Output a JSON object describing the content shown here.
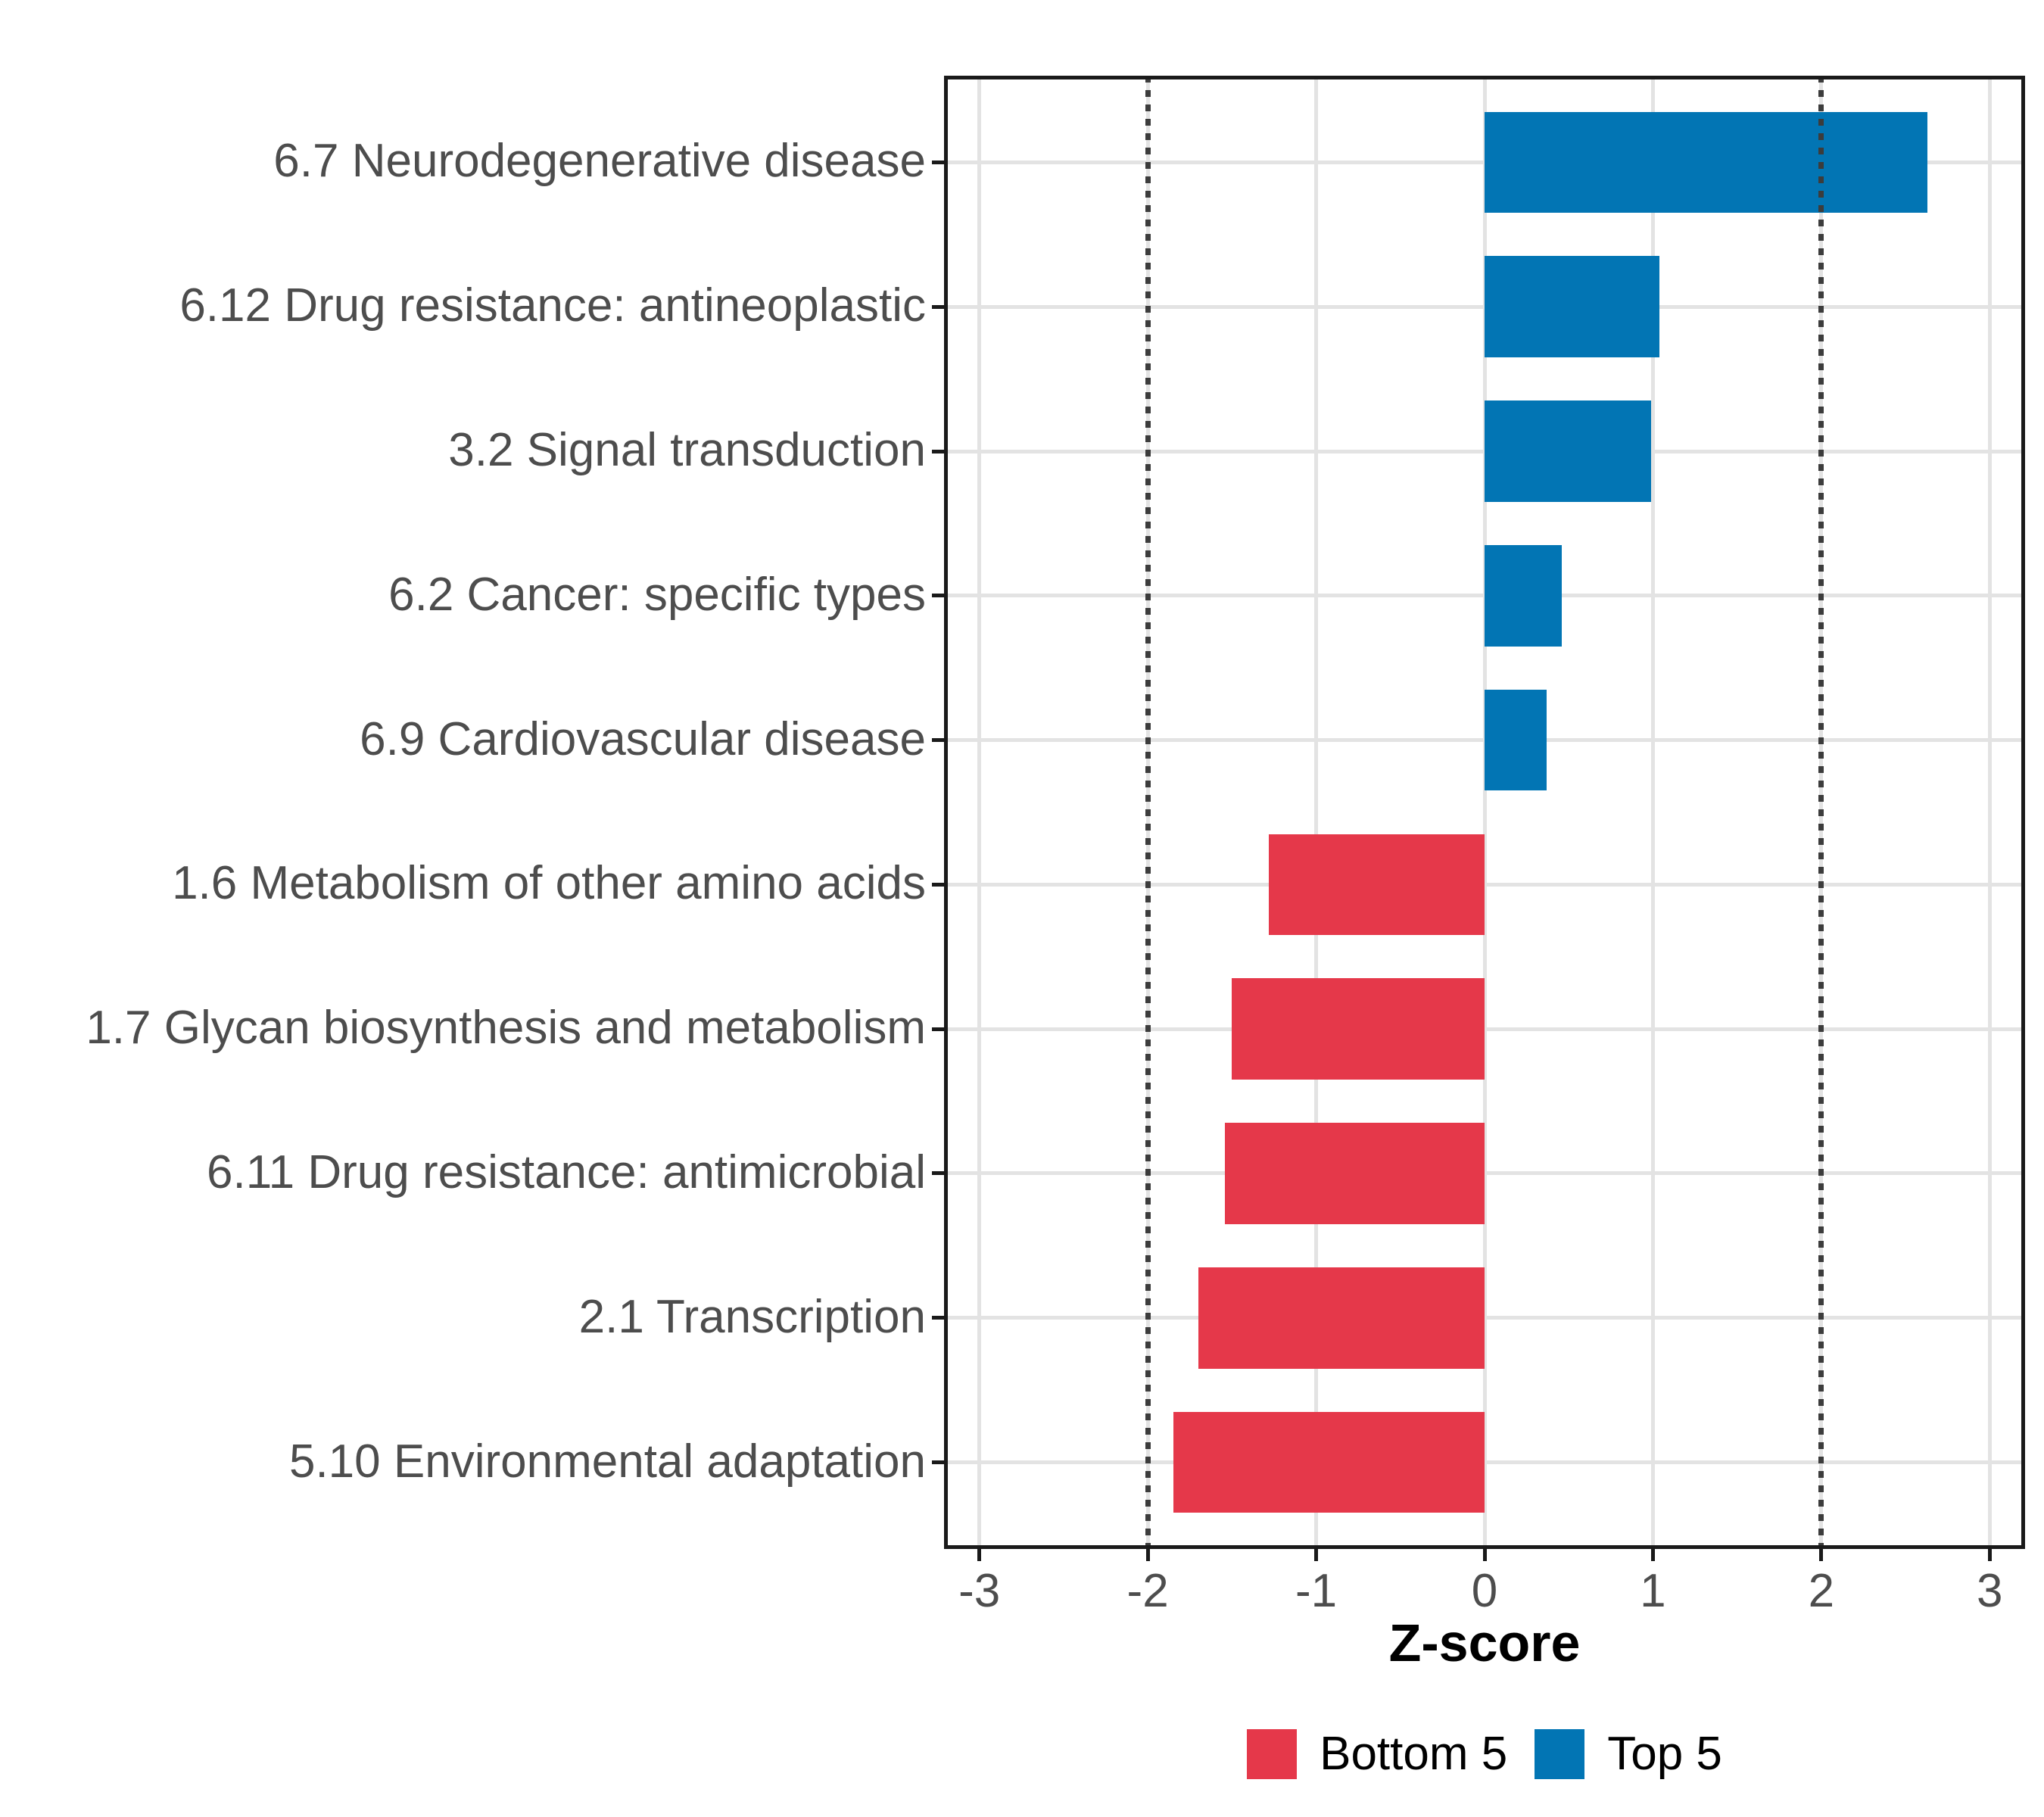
{
  "chart_data": {
    "type": "bar",
    "orientation": "horizontal",
    "title": "",
    "xlabel": "Z-score",
    "ylabel": "",
    "categories": [
      "6.7 Neurodegenerative disease",
      "6.12 Drug resistance: antineoplastic",
      "3.2 Signal transduction",
      "6.2 Cancer: specific types",
      "6.9 Cardiovascular disease",
      "1.6 Metabolism of other amino acids",
      "1.7 Glycan biosynthesis and metabolism",
      "6.11 Drug resistance: antimicrobial",
      "2.1 Transcription",
      "5.10 Environmental adaptation"
    ],
    "values": [
      2.63,
      1.04,
      0.99,
      0.46,
      0.37,
      -1.28,
      -1.5,
      -1.54,
      -1.7,
      -1.85
    ],
    "groups": [
      "Top 5",
      "Top 5",
      "Top 5",
      "Top 5",
      "Top 5",
      "Bottom 5",
      "Bottom 5",
      "Bottom 5",
      "Bottom 5",
      "Bottom 5"
    ],
    "x_ticks": [
      "-3",
      "-2",
      "-1",
      "0",
      "1",
      "2",
      "3"
    ],
    "xlim": [
      -3.21,
      3.21
    ],
    "reference_lines": [
      -2,
      2
    ],
    "bar_width_fraction": 0.7,
    "grid": "major-only",
    "legend_position": "bottom",
    "legend": [
      {
        "label": "Bottom 5",
        "color": "#E5384A"
      },
      {
        "label": "Top 5",
        "color": "#0275B4"
      }
    ],
    "colors": {
      "Top 5": "#0275B4",
      "Bottom 5": "#E5384A",
      "gridline": "#E3E3E3",
      "reference_line": "#3C3C3C",
      "panel_border": "#1A1A1A",
      "axis_text": "#4D4D4D",
      "axis_title": "#000000"
    }
  }
}
